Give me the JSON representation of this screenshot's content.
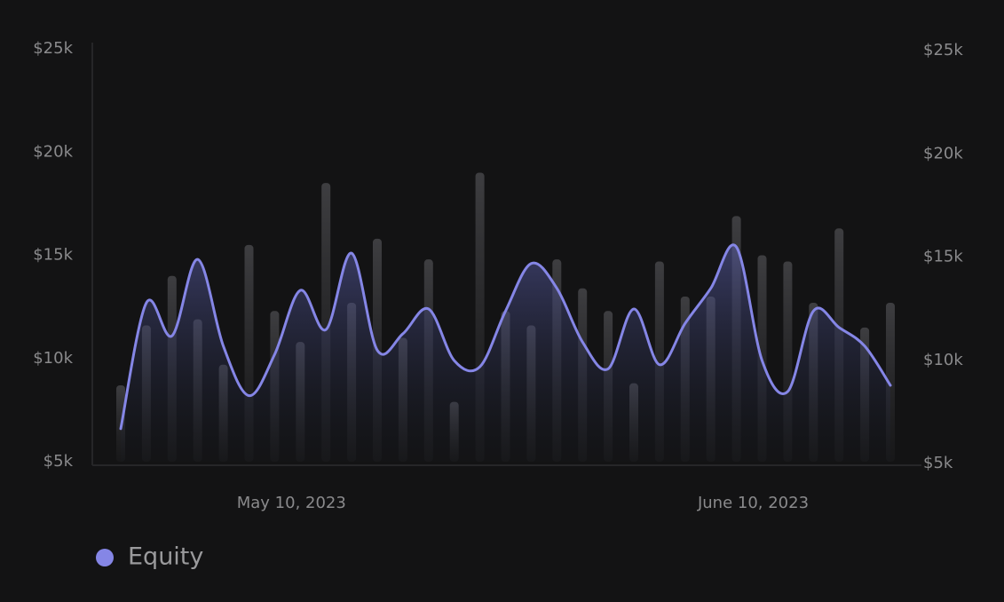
{
  "chart_data": {
    "type": "line",
    "categories": [
      null,
      null,
      null,
      null,
      null,
      null,
      null,
      "May 10, 2023",
      null,
      null,
      null,
      null,
      null,
      null,
      null,
      null,
      null,
      null,
      null,
      null,
      null,
      null,
      null,
      null,
      null,
      "June 10, 2023",
      null,
      null,
      null,
      null,
      null
    ],
    "series": [
      {
        "name": "Equity",
        "type": "line",
        "color": "#8586e6",
        "values": [
          6600,
          12700,
          11100,
          14800,
          10600,
          8200,
          10200,
          13300,
          11400,
          15100,
          10400,
          11200,
          12400,
          9900,
          9600,
          12300,
          14600,
          13400,
          10800,
          9500,
          12400,
          9700,
          11700,
          13400,
          15400,
          9900,
          8400,
          12300,
          11500,
          10600,
          8700
        ]
      },
      {
        "type": "bar",
        "axis": "y2",
        "color": "#3b3b3e",
        "values": [
          8700,
          11600,
          14000,
          11900,
          9700,
          15500,
          12300,
          10800,
          18500,
          12700,
          15800,
          11000,
          14800,
          7900,
          19000,
          12300,
          11600,
          14800,
          13400,
          12300,
          8800,
          14700,
          13000,
          13000,
          16900,
          15000,
          14700,
          12700,
          16300,
          11500,
          12700
        ]
      }
    ],
    "ylim": [
      5000,
      25000
    ],
    "yticks": [
      {
        "value": 5000,
        "label": "$5k"
      },
      {
        "value": 10000,
        "label": "$10k"
      },
      {
        "value": 15000,
        "label": "$15k"
      },
      {
        "value": 20000,
        "label": "$20k"
      },
      {
        "value": 25000,
        "label": "$25k"
      }
    ],
    "y2lim": [
      5000,
      25000
    ],
    "y2ticks": [
      {
        "value": 5000,
        "label": "$5k"
      },
      {
        "value": 10000,
        "label": "$10k"
      },
      {
        "value": 15000,
        "label": "$15k"
      },
      {
        "value": 20000,
        "label": "$20k"
      },
      {
        "value": 25000,
        "label": "$25k"
      }
    ],
    "legend": "bottom-left"
  }
}
